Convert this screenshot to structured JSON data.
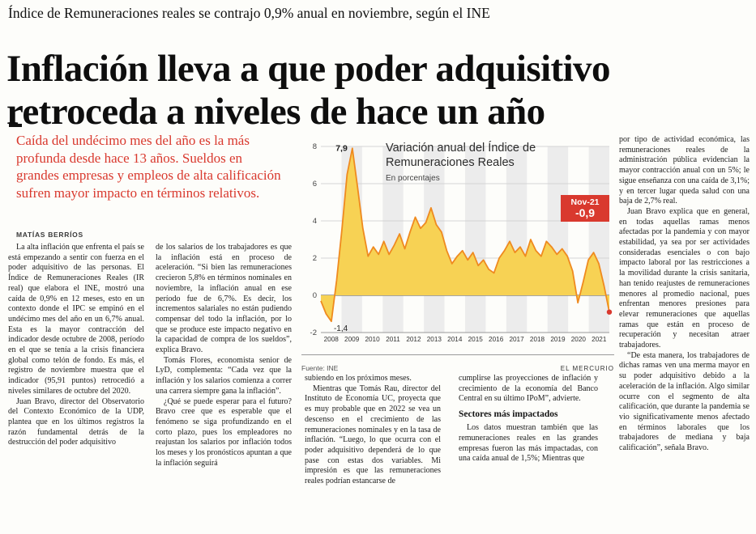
{
  "colors": {
    "accent_red": "#d9392e",
    "chart_line": "#ef8a1f",
    "chart_fill": "#f7d254",
    "band_gray": "#ececec"
  },
  "kicker": "Índice de Remuneraciones reales se contrajo 0,9% anual en noviembre, según el INE",
  "headline": {
    "line1": "Inflación lleva a que poder adquisitivo",
    "line2": "retroceda a niveles de hace un año"
  },
  "deck": "Caída del undécimo mes del año es la más profunda desde hace 13 años. Sueldos en grandes empresas y empleos de alta calificación sufren mayor impacto en términos relativos.",
  "byline": "MATÍAS BERRÍOS",
  "body": {
    "col1": [
      "La alta inflación que enfrenta el país se está empezando a sentir con fuerza en el poder adquisitivo de las personas. El Índice de Remuneraciones Reales (IR real) que elabora el INE, mostró una caída de 0,9% en 12 meses, esto en un contexto donde el IPC se empinó en el undécimo mes del año en un 6,7% anual. Esta es la mayor contracción del indicador desde octubre de 2008, período en el que se tenía a la crisis financiera global como telón de fondo. Es más, el registro de noviembre muestra que el indicador (95,91 puntos) retrocedió a niveles similares de octubre del 2020.",
      "Juan Bravo, director del Observatorio del Contexto Económico de la UDP, plantea que en los últimos registros la razón fundamental detrás de la destrucción del poder adquisitivo"
    ],
    "col2": [
      "de los salarios de los trabajadores es que la inflación está en proceso de aceleración. “Si bien las remuneraciones crecieron 5,8% en términos nominales en noviembre, la inflación anual en ese período fue de 6,7%. Es decir, los incrementos salariales no están pudiendo compensar del todo la inflación, por lo que se produce este impacto negativo en la capacidad de compra de los sueldos”, explica Bravo.",
      "Tomás Flores, economista senior de LyD, complementa: “Cada vez que la inflación y los salarios comienza a correr una carrera siempre gana la inflación”.",
      "¿Qué se puede esperar para el futuro? Bravo cree que es esperable que el fenómeno se siga profundizando en el corto plazo, pues los empleadores no reajustan los salarios por inflación todos los meses y los pronósticos apuntan a que la inflación seguirá"
    ],
    "col3": [
      "subiendo en los próximos meses.",
      "Mientras que Tomás Rau, director del Instituto de Economía UC, proyecta que es muy probable que en 2022 se vea un descenso en el crecimiento de las remuneraciones nominales y en la tasa de inflación. “Luego, lo que ocurra con el poder adquisitivo dependerá de lo que pase con estas dos variables. Mi impresión es que las remuneraciones reales podrían estancarse de"
    ],
    "col4_before": [
      "cumplirse las proyecciones de inflación y crecimiento de la economía del Banco Central en su último IPoM”, advierte."
    ],
    "col4_subhead": "Sectores más impactados",
    "col4_after": [
      "Los datos muestran también que las remuneraciones reales en las grandes empresas fueron las más impactadas, con una caída anual de 1,5%; Mientras que"
    ],
    "col5": [
      "por tipo de actividad económica, las remuneraciones reales de la administración pública evidencian la mayor contracción anual con un 5%; le sigue enseñanza con una caída de 3,1%; y en tercer lugar queda salud con una baja de 2,7% real.",
      "Juan Bravo explica que en general, en todas aquellas ramas menos afectadas por la pandemia y con mayor estabilidad, ya sea por ser actividades consideradas esenciales o con bajo impacto laboral por las restricciones a la movilidad durante la crisis sanitaria, han tenido reajustes de remuneraciones menores al promedio nacional, pues enfrentan menores presiones para elevar remuneraciones que aquellas ramas que están en proceso de recuperación y necesitan atraer trabajadores.",
      "“De esta manera, los trabajadores de dichas ramas ven una merma mayor en su poder adquisitivo debido a la aceleración de la inflación. Algo similar ocurre con el segmento de alta calificación, que durante la pandemia se vio significativamente menos afectado en términos laborales que los trabajadores de mediana y baja calificación”, señala Bravo."
    ]
  },
  "chart_data": {
    "type": "area",
    "title": "Variación anual del Índice de Remuneraciones Reales",
    "subtitle": "En porcentajes",
    "source": "Fuente: INE",
    "credit": "EL MERCURIO",
    "categories": [
      "2008",
      "2009",
      "2010",
      "2011",
      "2012",
      "2013",
      "2014",
      "2015",
      "2016",
      "2017",
      "2018",
      "2019",
      "2020",
      "2021"
    ],
    "values": [
      -0.3,
      -1.0,
      -1.4,
      0.8,
      3.5,
      6.5,
      7.9,
      5.8,
      3.6,
      2.1,
      2.6,
      2.2,
      2.9,
      2.2,
      2.7,
      3.3,
      2.5,
      3.4,
      4.2,
      3.6,
      3.9,
      4.7,
      3.8,
      3.4,
      2.4,
      1.7,
      2.1,
      2.4,
      1.9,
      2.3,
      1.6,
      1.9,
      1.4,
      1.2,
      2.0,
      2.4,
      2.9,
      2.3,
      2.6,
      2.1,
      3.0,
      2.4,
      2.1,
      2.9,
      2.6,
      2.2,
      2.5,
      2.1,
      1.3,
      -0.4,
      0.7,
      1.9,
      2.3,
      1.7,
      0.5,
      -0.9
    ],
    "ylim": [
      -2,
      8
    ],
    "yticks": [
      8,
      6,
      4,
      2,
      0,
      -2
    ],
    "grid": true,
    "legend": "none",
    "peak_label": "7,9",
    "trough_label": "-1,4",
    "badge": {
      "label": "Nov-21",
      "value": "-0,9"
    }
  }
}
